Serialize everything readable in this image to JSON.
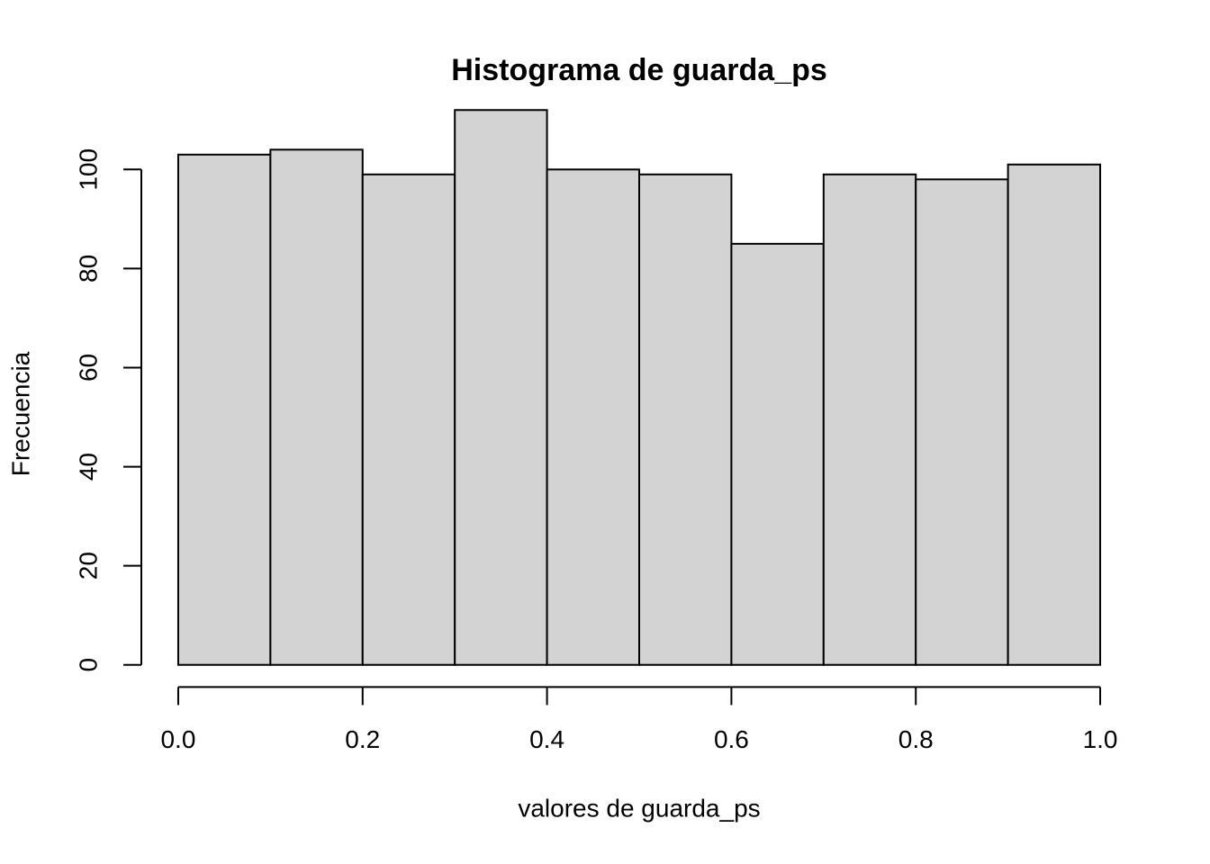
{
  "chart_data": {
    "type": "histogram",
    "title": "Histograma de guarda_ps",
    "xlabel": "valores de guarda_ps",
    "ylabel": "Frecuencia",
    "bins": [
      0,
      0.1,
      0.2,
      0.3,
      0.4,
      0.5,
      0.6,
      0.7,
      0.8,
      0.9,
      1.0
    ],
    "values": [
      103,
      104,
      99,
      112,
      100,
      99,
      85,
      99,
      98,
      101
    ],
    "color": "#d3d3d3",
    "xlim": [
      -0.04,
      1.04
    ],
    "ylim": [
      -4.48,
      116.48
    ],
    "xticks": [
      {
        "value": 0,
        "label": "0.0"
      },
      {
        "value": 0.2,
        "label": "0.2"
      },
      {
        "value": 0.4,
        "label": "0.4"
      },
      {
        "value": 0.6,
        "label": "0.6"
      },
      {
        "value": 0.8,
        "label": "0.8"
      },
      {
        "value": 1.0,
        "label": "1.0"
      }
    ],
    "yticks": [
      0,
      20,
      40,
      60,
      80,
      100
    ],
    "grid": false
  }
}
